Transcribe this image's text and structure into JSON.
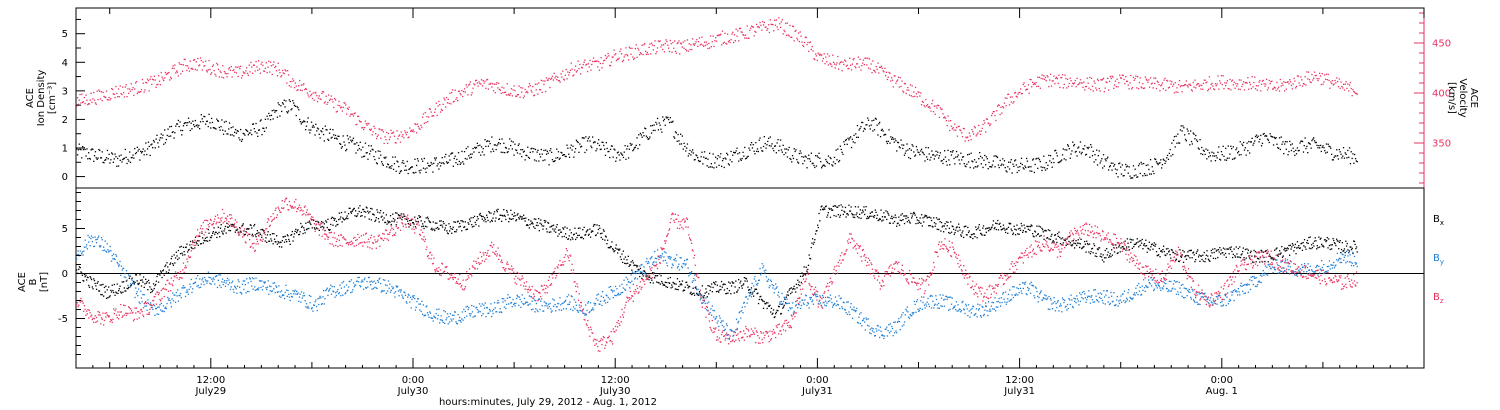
{
  "colors": {
    "black": "#000000",
    "red": "#e8335f",
    "blue": "#1f7fd6"
  },
  "chart_data": [
    {
      "type": "scatter",
      "panel": "top",
      "left_axis_label": [
        "ACE",
        "Ion Density",
        "[cm⁻³]"
      ],
      "right_axis_label": [
        "ACE",
        "Velocity",
        "[km/s]"
      ],
      "left_ticks": [
        "0",
        "1",
        "2",
        "3",
        "4",
        "5"
      ],
      "right_ticks": [
        "350",
        "400",
        "450"
      ],
      "ylim_left": [
        -0.4,
        5.9
      ],
      "ylim_right": [
        305,
        485
      ],
      "series": [
        {
          "name": "Ion Density",
          "color": "#000000",
          "axis": "left",
          "values": [
            0.9,
            0.8,
            0.7,
            0.6,
            0.8,
            0.9,
            1.2,
            1.6,
            1.8,
            1.9,
            2.0,
            1.7,
            1.5,
            1.6,
            1.8,
            2.4,
            2.5,
            1.9,
            1.6,
            1.4,
            1.2,
            1.0,
            0.8,
            0.6,
            0.4,
            0.4,
            0.4,
            0.5,
            0.6,
            0.8,
            1.0,
            1.2,
            1.1,
            0.9,
            0.8,
            0.7,
            0.8,
            1.0,
            1.2,
            1.0,
            0.8,
            0.9,
            1.4,
            1.8,
            1.9,
            1.2,
            0.7,
            0.6,
            0.6,
            0.8,
            1.0,
            1.2,
            1.1,
            0.8,
            0.6,
            0.6,
            0.6,
            1.0,
            1.6,
            1.9,
            1.5,
            1.1,
            0.9,
            0.8,
            0.7,
            0.7,
            0.6,
            0.6,
            0.5,
            0.4,
            0.4,
            0.4,
            0.5,
            0.8,
            1.0,
            1.0,
            0.6,
            0.3,
            0.2,
            0.3,
            0.4,
            0.8,
            1.6,
            1.2,
            0.8,
            0.8,
            0.9,
            1.1,
            1.4,
            1.2,
            1.0,
            1.1,
            1.1,
            0.9,
            0.8,
            0.7
          ]
        },
        {
          "name": "Velocity",
          "color": "#e8335f",
          "axis": "right",
          "values": [
            392,
            395,
            398,
            402,
            404,
            408,
            412,
            420,
            428,
            430,
            426,
            422,
            420,
            425,
            428,
            424,
            412,
            404,
            398,
            390,
            384,
            372,
            362,
            356,
            358,
            364,
            376,
            388,
            398,
            404,
            410,
            408,
            404,
            402,
            404,
            410,
            418,
            426,
            428,
            430,
            438,
            440,
            444,
            446,
            448,
            446,
            450,
            452,
            456,
            458,
            462,
            466,
            470,
            462,
            452,
            436,
            432,
            428,
            430,
            428,
            418,
            410,
            402,
            392,
            382,
            366,
            358,
            362,
            376,
            392,
            402,
            410,
            414,
            412,
            412,
            410,
            408,
            412,
            412,
            410,
            409,
            408,
            406,
            408,
            410,
            412,
            410,
            411,
            408,
            406,
            410,
            414,
            418,
            412,
            406,
            404
          ]
        }
      ]
    },
    {
      "type": "scatter",
      "panel": "bottom",
      "left_axis_label": [
        "ACE",
        "B",
        "[nT]"
      ],
      "left_ticks": [
        "-5",
        "0",
        "5"
      ],
      "ylim": [
        -10.5,
        9.5
      ],
      "x_tick_labels": [
        {
          "time": "12:00",
          "date": "July29"
        },
        {
          "time": "0:00",
          "date": "July30"
        },
        {
          "time": "12:00",
          "date": "July30"
        },
        {
          "time": "0:00",
          "date": "July31"
        },
        {
          "time": "12:00",
          "date": "July31"
        },
        {
          "time": "0:00",
          "date": "Aug. 1"
        }
      ],
      "xlabel": "hours:minutes, July 29, 2012 - Aug.  1, 2012",
      "xlim_hours": [
        4,
        84
      ],
      "legend": [
        {
          "base": "B",
          "sub": "x",
          "color": "#000000"
        },
        {
          "base": "B",
          "sub": "y",
          "color": "#1f7fd6"
        },
        {
          "base": "B",
          "sub": "z",
          "color": "#e8335f"
        }
      ],
      "series": [
        {
          "name": "Bx",
          "color": "#000000",
          "values": [
            0.5,
            -1.0,
            -2.0,
            -1.5,
            -0.5,
            -1.5,
            0.5,
            2.5,
            3.5,
            4.5,
            5.0,
            5.0,
            4.8,
            4.0,
            3.5,
            5.0,
            5.5,
            5.5,
            6.5,
            7.0,
            6.5,
            6.2,
            6.0,
            5.8,
            5.5,
            5.0,
            5.5,
            6.0,
            6.5,
            6.5,
            6.0,
            5.5,
            5.0,
            4.5,
            4.5,
            5.0,
            3.0,
            1.5,
            0.0,
            -0.5,
            -1.0,
            -1.5,
            -2.0,
            -1.5,
            -1.5,
            -1.0,
            -3.0,
            -4.5,
            -2.0,
            0.5,
            7.0,
            7.0,
            7.0,
            6.8,
            6.5,
            6.0,
            6.2,
            6.0,
            5.5,
            5.0,
            4.5,
            5.0,
            5.5,
            5.0,
            5.0,
            4.5,
            4.0,
            3.5,
            3.0,
            2.0,
            3.0,
            3.5,
            3.0,
            2.5,
            2.0,
            2.0,
            2.0,
            2.5,
            2.5,
            2.0,
            2.0,
            2.5,
            3.0,
            3.5,
            3.5,
            3.0,
            3.0
          ]
        },
        {
          "name": "By",
          "color": "#1f7fd6",
          "values": [
            2.0,
            4.0,
            3.0,
            0.5,
            -2.0,
            -4.0,
            -3.5,
            -2.0,
            -1.0,
            -0.5,
            -1.0,
            -1.5,
            -1.0,
            -1.5,
            -2.0,
            -2.5,
            -3.5,
            -2.0,
            -1.5,
            -1.0,
            -1.0,
            -1.5,
            -2.5,
            -3.5,
            -4.5,
            -5.0,
            -4.5,
            -4.0,
            -4.0,
            -3.0,
            -3.0,
            -3.5,
            -3.5,
            -3.0,
            -4.0,
            -3.0,
            -2.0,
            -1.0,
            0.5,
            2.0,
            1.5,
            1.0,
            -2.5,
            -5.0,
            -7.0,
            -3.0,
            0.5,
            -2.0,
            -4.0,
            -3.0,
            -3.0,
            -3.0,
            -4.0,
            -5.5,
            -6.5,
            -6.0,
            -4.0,
            -3.0,
            -3.0,
            -3.5,
            -4.0,
            -4.0,
            -3.0,
            -2.0,
            -1.5,
            -3.0,
            -3.5,
            -3.0,
            -2.5,
            -2.5,
            -3.0,
            -2.0,
            -1.0,
            -1.5,
            -1.5,
            -2.5,
            -3.0,
            -3.0,
            -2.0,
            -1.0,
            0.5,
            1.0,
            0.5,
            0.5,
            1.0,
            2.0,
            1.5
          ]
        },
        {
          "name": "Bz",
          "color": "#e8335f",
          "values": [
            -3.0,
            -4.5,
            -5.0,
            -4.0,
            -4.5,
            -3.5,
            -1.5,
            0.0,
            4.0,
            6.0,
            6.5,
            5.0,
            3.0,
            6.0,
            8.0,
            7.5,
            5.5,
            4.0,
            3.5,
            4.0,
            3.5,
            4.5,
            6.0,
            5.0,
            1.0,
            0.0,
            -1.0,
            1.5,
            3.0,
            0.5,
            -1.0,
            -2.5,
            -0.5,
            2.5,
            -4.5,
            -8.0,
            -7.0,
            -3.0,
            -1.0,
            1.0,
            6.0,
            5.5,
            -3.0,
            -7.0,
            -7.0,
            -6.5,
            -7.0,
            -6.5,
            -5.5,
            0.0,
            -3.5,
            0.5,
            4.0,
            1.5,
            -1.0,
            1.0,
            -0.5,
            -1.5,
            3.5,
            2.5,
            -1.0,
            -2.5,
            -1.0,
            1.0,
            2.5,
            3.5,
            2.5,
            4.5,
            5.0,
            4.0,
            3.5,
            1.5,
            0.0,
            -0.5,
            2.5,
            -1.5,
            -3.0,
            -2.0,
            0.5,
            1.5,
            2.0,
            1.0,
            0.5,
            0.0,
            -0.5,
            -1.0,
            -0.5
          ]
        }
      ]
    }
  ]
}
